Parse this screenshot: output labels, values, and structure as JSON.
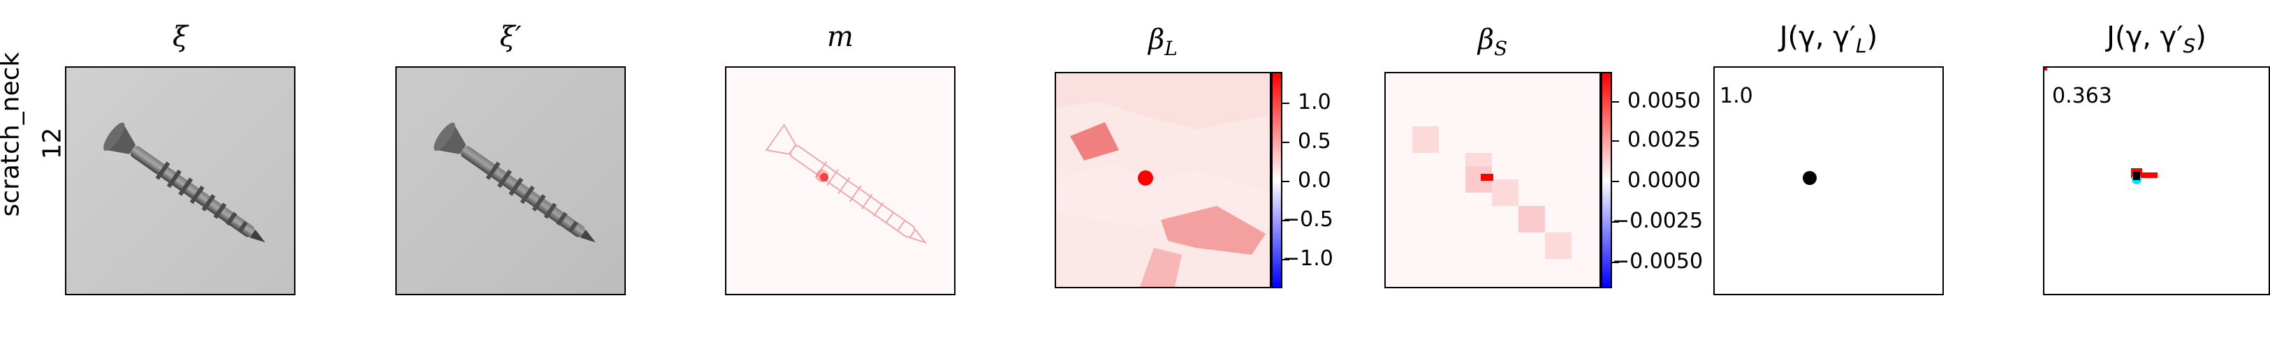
{
  "row": {
    "label_line1": "scratch_neck",
    "label_line2": "12"
  },
  "panels": {
    "xi": {
      "title": "ξ"
    },
    "xi_prime": {
      "title": "ξ′"
    },
    "m": {
      "title": "m"
    },
    "beta_L": {
      "title_base": "β",
      "title_sub": "L",
      "colorbar_ticks": [
        "1.0",
        "0.5",
        "0.0",
        "−0.5",
        "−1.0"
      ]
    },
    "beta_S": {
      "title_base": "β",
      "title_sub": "S",
      "colorbar_ticks": [
        "0.0050",
        "0.0025",
        "0.0000",
        "−0.0025",
        "−0.0050"
      ]
    },
    "j_L": {
      "title": "J(γ, γ′",
      "title_sub": "L",
      "title_close": ")",
      "value": "1.0"
    },
    "j_S": {
      "title": "J(γ, γ′",
      "title_sub": "S",
      "title_close": ")",
      "value": "0.363"
    }
  },
  "colors": {
    "positive": "#ff0000",
    "zero": "#ffffff",
    "negative": "#0000ff",
    "prediction": "#000000",
    "ground_truth": "#00e5ff"
  }
}
